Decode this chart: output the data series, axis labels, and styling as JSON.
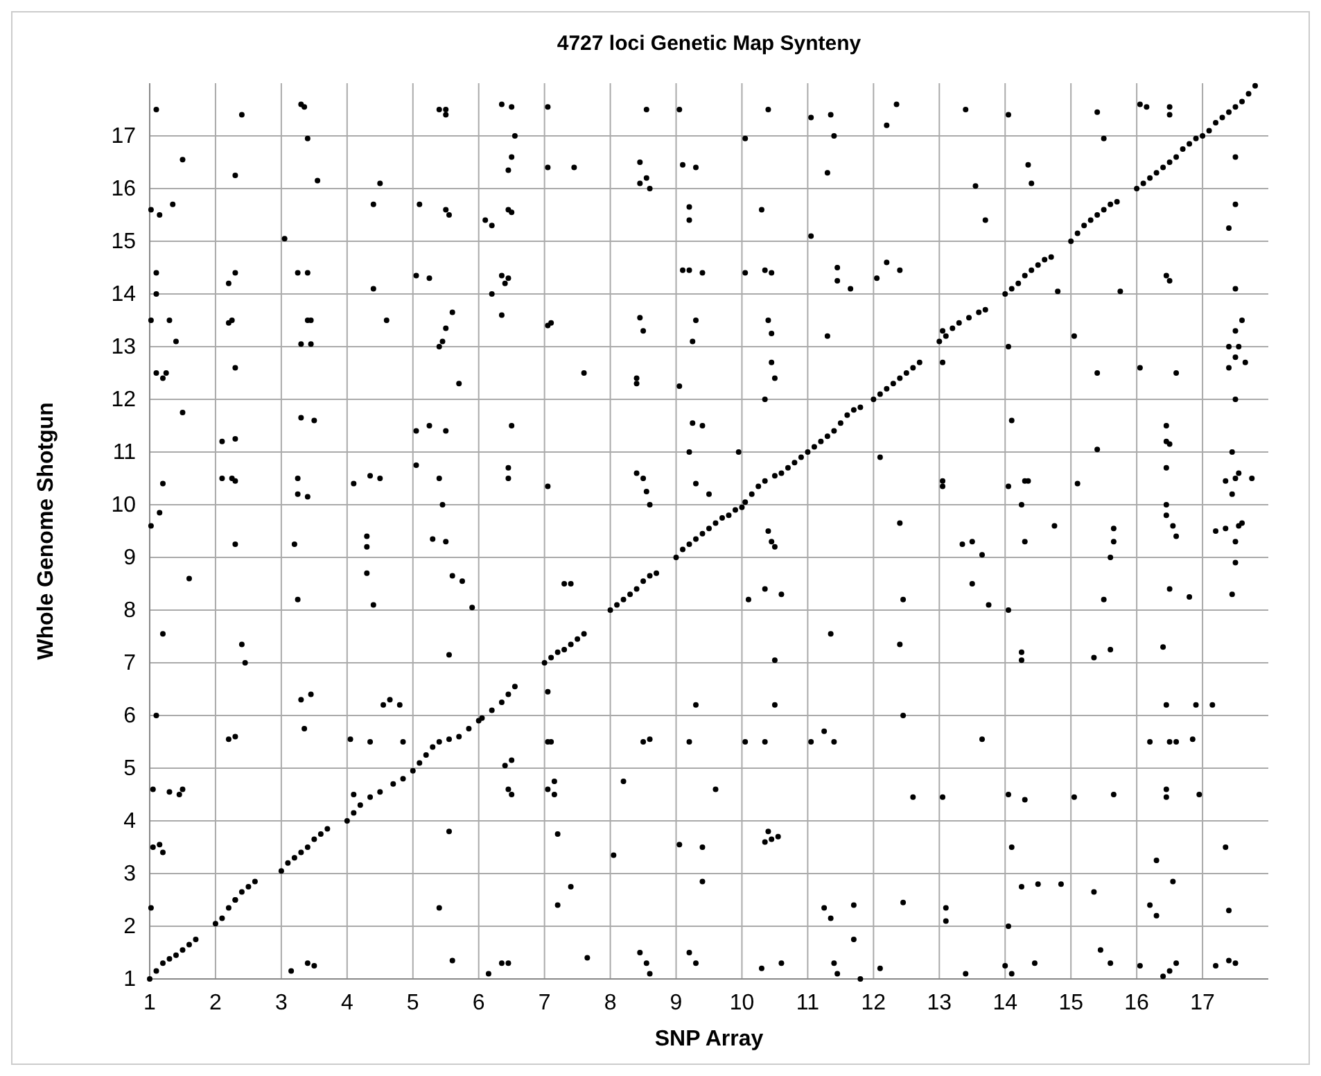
{
  "chart_data": {
    "type": "scatter",
    "title": "4727 loci Genetic Map Synteny",
    "xlabel": "SNP Array",
    "ylabel": "Whole Genome Shotgun",
    "xlim": [
      1,
      18
    ],
    "ylim": [
      1,
      18
    ],
    "xticks": [
      1,
      2,
      3,
      4,
      5,
      6,
      7,
      8,
      9,
      10,
      11,
      12,
      13,
      14,
      15,
      16,
      17
    ],
    "yticks": [
      1,
      2,
      3,
      4,
      5,
      6,
      7,
      8,
      9,
      10,
      11,
      12,
      13,
      14,
      15,
      16,
      17
    ],
    "grid": true,
    "marker": "circle",
    "series": [
      {
        "color": "#000000",
        "x": [
          1,
          1.1,
          1.2,
          1.3,
          1.4,
          1.5,
          1.6,
          1.7,
          2,
          2.1,
          2.2,
          2.3,
          2.4,
          2.5,
          2.6,
          3,
          3.1,
          3.2,
          3.3,
          3.4,
          3.5,
          3.6,
          3.7,
          4,
          4.1,
          4.2,
          4.35,
          4.5,
          4.7,
          4.85,
          5.0,
          5.1,
          5.2,
          5.3,
          5.4,
          5.55,
          5.7,
          5.85,
          6.0,
          6.05,
          6.2,
          6.35,
          6.45,
          6.55,
          7,
          7.1,
          7.2,
          7.3,
          7.4,
          7.5,
          7.6,
          8,
          8.1,
          8.2,
          8.3,
          8.4,
          8.5,
          8.6,
          8.7,
          9,
          9.1,
          9.2,
          9.3,
          9.4,
          9.5,
          9.6,
          9.7,
          9.8,
          9.9,
          10,
          10.05,
          10.15,
          10.25,
          10.35,
          10.5,
          10.6,
          10.7,
          10.8,
          10.9,
          11,
          11.1,
          11.2,
          11.3,
          11.4,
          11.5,
          11.6,
          11.7,
          11.8,
          12,
          12.1,
          12.2,
          12.3,
          12.4,
          12.5,
          12.6,
          12.7,
          13,
          13.1,
          13.2,
          13.3,
          13.45,
          13.6,
          13.7,
          14,
          14.1,
          14.2,
          14.3,
          14.4,
          14.5,
          14.6,
          14.7,
          15,
          15.1,
          15.2,
          15.3,
          15.4,
          15.5,
          15.6,
          15.7,
          16,
          16.1,
          16.2,
          16.3,
          16.4,
          16.5,
          16.6,
          16.7,
          16.8,
          16.9,
          17,
          17.1,
          17.2,
          17.3,
          17.4,
          17.5,
          17.6,
          17.7,
          17.8
        ],
        "values": [
          1,
          1.15,
          1.3,
          1.38,
          1.45,
          1.55,
          1.65,
          1.75,
          2.05,
          2.15,
          2.35,
          2.5,
          2.65,
          2.75,
          2.85,
          3.05,
          3.2,
          3.3,
          3.4,
          3.5,
          3.65,
          3.75,
          3.85,
          4.0,
          4.15,
          4.3,
          4.45,
          4.55,
          4.7,
          4.8,
          4.95,
          5.1,
          5.25,
          5.4,
          5.5,
          5.55,
          5.6,
          5.75,
          5.9,
          5.95,
          6.1,
          6.25,
          6.4,
          6.55,
          7.0,
          7.1,
          7.2,
          7.25,
          7.35,
          7.45,
          7.55,
          8.0,
          8.1,
          8.2,
          8.3,
          8.4,
          8.55,
          8.65,
          8.7,
          9.0,
          9.15,
          9.25,
          9.35,
          9.45,
          9.55,
          9.65,
          9.75,
          9.8,
          9.9,
          9.95,
          10.05,
          10.2,
          10.35,
          10.45,
          10.55,
          10.6,
          10.7,
          10.8,
          10.9,
          11.0,
          11.1,
          11.2,
          11.3,
          11.4,
          11.55,
          11.7,
          11.8,
          11.85,
          12.0,
          12.1,
          12.2,
          12.3,
          12.4,
          12.5,
          12.6,
          12.7,
          13.1,
          13.2,
          13.35,
          13.45,
          13.55,
          13.65,
          13.7,
          14.0,
          14.1,
          14.2,
          14.35,
          14.45,
          14.55,
          14.65,
          14.7,
          15.0,
          15.15,
          15.3,
          15.4,
          15.5,
          15.6,
          15.7,
          15.75,
          16.0,
          16.1,
          16.2,
          16.3,
          16.4,
          16.5,
          16.6,
          16.75,
          16.85,
          16.95,
          17.0,
          17.1,
          17.25,
          17.35,
          17.45,
          17.55,
          17.65,
          17.8,
          17.95
        ]
      },
      {
        "color": "#000000",
        "x": [
          1.1,
          1.02,
          1.15,
          1.1,
          1.1,
          1.35,
          1.5,
          1.3,
          1.4,
          1.02,
          1.1,
          1.25,
          1.2,
          1.5,
          1.2,
          1.15,
          1.02,
          1.6,
          1.2,
          1.1,
          1.05,
          1.3,
          1.45,
          1.5,
          1.05,
          1.15,
          1.2,
          1.02
        ],
        "values": [
          17.5,
          15.6,
          15.5,
          14.4,
          14.0,
          15.7,
          16.55,
          13.5,
          13.1,
          13.5,
          12.5,
          12.5,
          12.4,
          11.75,
          10.4,
          9.85,
          9.6,
          8.6,
          7.55,
          6.0,
          4.6,
          4.55,
          4.5,
          4.6,
          3.5,
          3.55,
          3.4,
          2.35
        ]
      },
      {
        "color": "#000000",
        "x": [
          2.2,
          2.3,
          2.25,
          2.2,
          2.3,
          2.3,
          2.4,
          2.1,
          2.3,
          2.1,
          2.25,
          2.3,
          2.3,
          2.2,
          2.3,
          2.4,
          2.45,
          2.3
        ],
        "values": [
          14.2,
          14.4,
          13.5,
          13.45,
          12.6,
          16.25,
          17.4,
          11.2,
          11.25,
          10.5,
          10.5,
          10.45,
          9.25,
          5.55,
          5.6,
          7.35,
          7.0,
          2.5
        ]
      },
      {
        "color": "#000000",
        "x": [
          3.3,
          3.35,
          3.4,
          3.55,
          3.05,
          3.25,
          3.4,
          3.3,
          3.4,
          3.45,
          3.45,
          3.3,
          3.5,
          3.25,
          3.25,
          3.4,
          3.2,
          3.25,
          3.3,
          3.45,
          3.35,
          3.15,
          3.4,
          3.5
        ],
        "values": [
          17.6,
          17.55,
          16.95,
          16.15,
          15.05,
          14.4,
          14.4,
          13.05,
          13.5,
          13.5,
          13.05,
          11.65,
          11.6,
          10.5,
          10.2,
          10.15,
          9.25,
          8.2,
          6.3,
          6.4,
          5.75,
          1.15,
          1.3,
          1.25
        ]
      },
      {
        "color": "#000000",
        "x": [
          4.5,
          4.4,
          4.4,
          4.6,
          4.1,
          4.35,
          4.5,
          4.3,
          4.3,
          4.3,
          4.4,
          4.05,
          4.35,
          4.1,
          4.55,
          4.65,
          4.8,
          4.85
        ],
        "values": [
          16.1,
          15.7,
          14.1,
          13.5,
          10.4,
          10.55,
          10.5,
          9.4,
          9.2,
          8.7,
          8.1,
          5.55,
          5.5,
          4.5,
          6.2,
          6.3,
          6.2,
          5.5
        ]
      },
      {
        "color": "#000000",
        "x": [
          5.4,
          5.5,
          5.5,
          5.5,
          5.55,
          5.1,
          5.05,
          5.25,
          5.5,
          5.45,
          5.4,
          5.6,
          5.7,
          5.05,
          5.25,
          5.5,
          5.05,
          5.4,
          5.45,
          5.5,
          5.3,
          5.6,
          5.75,
          5.55,
          5.55,
          5.4,
          5.6,
          5.9
        ],
        "values": [
          17.5,
          17.5,
          17.4,
          15.6,
          15.5,
          15.7,
          14.35,
          14.3,
          13.35,
          13.1,
          13.0,
          13.65,
          12.3,
          11.4,
          11.5,
          11.4,
          10.75,
          10.5,
          10.0,
          9.3,
          9.35,
          8.65,
          8.55,
          7.15,
          3.8,
          2.35,
          1.35,
          8.05
        ]
      },
      {
        "color": "#000000",
        "x": [
          6.35,
          6.5,
          6.55,
          6.5,
          6.45,
          6.1,
          6.2,
          6.45,
          6.5,
          6.35,
          6.4,
          6.45,
          6.35,
          6.5,
          6.45,
          6.45,
          6.2,
          6.4,
          6.5,
          6.45,
          6.5,
          6.35,
          6.45,
          6.15
        ],
        "values": [
          17.6,
          17.55,
          17.0,
          16.6,
          16.35,
          15.4,
          15.3,
          15.6,
          15.55,
          14.35,
          14.2,
          14.3,
          13.6,
          11.5,
          10.7,
          10.5,
          14.0,
          5.05,
          5.15,
          4.6,
          4.5,
          1.3,
          1.3,
          1.1
        ]
      },
      {
        "color": "#000000",
        "x": [
          7.05,
          7.05,
          7.45,
          7.1,
          7.05,
          7.6,
          7.05,
          7.3,
          7.4,
          7.05,
          7.05,
          7.1,
          7.05,
          7.15,
          7.15,
          7.2,
          7.4,
          7.2,
          7.65
        ],
        "values": [
          17.55,
          16.4,
          16.4,
          13.45,
          13.4,
          12.5,
          10.35,
          8.5,
          8.5,
          6.45,
          5.5,
          5.5,
          4.6,
          4.75,
          4.5,
          3.75,
          2.75,
          2.4,
          1.4
        ]
      },
      {
        "color": "#000000",
        "x": [
          8.55,
          8.45,
          8.45,
          8.55,
          8.6,
          8.45,
          8.5,
          8.4,
          8.4,
          8.4,
          8.5,
          8.55,
          8.6,
          8.2,
          8.5,
          8.6,
          8.05,
          8.45,
          8.55,
          8.6
        ],
        "values": [
          17.5,
          16.5,
          16.1,
          16.2,
          16.0,
          13.55,
          13.3,
          12.4,
          12.3,
          10.6,
          10.5,
          10.25,
          10.0,
          4.75,
          5.5,
          5.55,
          3.35,
          1.5,
          1.3,
          1.1
        ]
      },
      {
        "color": "#000000",
        "x": [
          9.05,
          9.1,
          9.3,
          9.2,
          9.2,
          9.1,
          9.2,
          9.4,
          9.3,
          9.25,
          9.05,
          9.25,
          9.4,
          9.2,
          9.3,
          9.5,
          9.3,
          9.2,
          9.6,
          9.05,
          9.4,
          9.4,
          9.2,
          9.3
        ],
        "values": [
          17.5,
          16.45,
          16.4,
          15.65,
          15.4,
          14.45,
          14.45,
          14.4,
          13.5,
          13.1,
          12.25,
          11.55,
          11.5,
          11.0,
          10.4,
          10.2,
          6.2,
          5.5,
          4.6,
          3.55,
          3.5,
          2.85,
          1.5,
          1.3
        ]
      },
      {
        "color": "#000000",
        "x": [
          10.4,
          10.05,
          10.3,
          10.35,
          10.05,
          10.45,
          10.4,
          10.45,
          10.45,
          10.5,
          10.35,
          9.95,
          10.4,
          10.45,
          10.5,
          10.1,
          10.35,
          10.6,
          10.05,
          10.35,
          10.5,
          10.4,
          10.35,
          10.45,
          10.55,
          10.3,
          10.6,
          10.5
        ],
        "values": [
          17.5,
          16.95,
          15.6,
          14.45,
          14.4,
          14.4,
          13.5,
          13.25,
          12.7,
          12.4,
          12.0,
          11.0,
          9.5,
          9.3,
          9.2,
          8.2,
          8.4,
          8.3,
          5.5,
          5.5,
          6.2,
          3.8,
          3.6,
          3.65,
          3.7,
          1.2,
          1.3,
          7.05
        ]
      },
      {
        "color": "#000000",
        "x": [
          11.05,
          11.35,
          11.4,
          11.05,
          11.3,
          11.45,
          11.45,
          11.65,
          11.3,
          11.35,
          11.25,
          11.4,
          11.25,
          11.35,
          11.4,
          11.45,
          11.7,
          11.7,
          11.05,
          11.8
        ],
        "values": [
          17.35,
          17.4,
          17.0,
          15.1,
          16.3,
          14.5,
          14.25,
          14.1,
          13.2,
          7.55,
          5.7,
          5.5,
          2.35,
          2.15,
          1.3,
          1.1,
          2.4,
          1.75,
          5.5,
          1.0
        ]
      },
      {
        "color": "#000000",
        "x": [
          12.35,
          12.2,
          12.05,
          12.2,
          12.4,
          12.1,
          12.4,
          12.45,
          12.4,
          12.45,
          12.6,
          12.45,
          12.1
        ],
        "values": [
          17.6,
          17.2,
          14.3,
          14.6,
          14.45,
          10.9,
          9.65,
          8.2,
          7.35,
          6.0,
          4.45,
          2.45,
          1.2
        ]
      },
      {
        "color": "#000000",
        "x": [
          13.4,
          13.55,
          13.7,
          13.05,
          13.05,
          13.05,
          13.05,
          13.35,
          13.5,
          13.65,
          13.5,
          13.75,
          13.65,
          13.05,
          13.1,
          13.1,
          13.4
        ],
        "values": [
          17.5,
          16.05,
          15.4,
          13.3,
          12.7,
          10.45,
          10.35,
          9.25,
          9.3,
          9.05,
          8.5,
          8.1,
          5.55,
          4.45,
          2.35,
          2.1,
          1.1
        ]
      },
      {
        "color": "#000000",
        "x": [
          14.05,
          14.35,
          14.4,
          14.05,
          14.1,
          14.05,
          14.3,
          14.35,
          14.25,
          14.3,
          14.75,
          14.05,
          14.25,
          14.25,
          14.05,
          14.3,
          14.1,
          14.25,
          14.05,
          14.0,
          14.1,
          14.45,
          14.5,
          14.85,
          14.8
        ],
        "values": [
          17.4,
          16.45,
          16.1,
          13.0,
          11.6,
          10.35,
          10.45,
          10.45,
          10.0,
          9.3,
          9.6,
          8.0,
          7.2,
          7.05,
          4.5,
          4.4,
          3.5,
          2.75,
          2.0,
          1.25,
          1.1,
          1.3,
          2.8,
          2.8,
          14.05
        ]
      },
      {
        "color": "#000000",
        "x": [
          15.4,
          15.5,
          15.05,
          15.4,
          15.4,
          15.1,
          15.65,
          15.65,
          15.6,
          15.5,
          15.6,
          15.35,
          15.65,
          15.35,
          15.45,
          15.6,
          15.05,
          15.75
        ],
        "values": [
          17.45,
          16.95,
          13.2,
          12.5,
          11.05,
          10.4,
          9.55,
          9.3,
          9.0,
          8.2,
          7.25,
          7.1,
          4.5,
          2.65,
          1.55,
          1.3,
          4.45,
          14.05
        ]
      },
      {
        "color": "#000000",
        "x": [
          16.05,
          16.15,
          16.5,
          16.5,
          16.45,
          16.5,
          16.05,
          16.6,
          16.45,
          16.45,
          16.5,
          16.45,
          16.45,
          16.45,
          16.55,
          16.6,
          16.8,
          16.5,
          16.4,
          16.45,
          16.5,
          16.6,
          16.2,
          16.85,
          16.45,
          16.45,
          16.3,
          16.2,
          16.3,
          16.55,
          16.6,
          16.5,
          16.4,
          16.9,
          16.95,
          16.05
        ],
        "values": [
          17.6,
          17.55,
          17.55,
          17.4,
          14.35,
          14.25,
          12.6,
          12.5,
          11.5,
          11.2,
          11.15,
          10.7,
          10.0,
          9.8,
          9.6,
          9.4,
          8.25,
          8.4,
          7.3,
          6.2,
          5.5,
          5.5,
          5.5,
          5.55,
          4.6,
          4.45,
          3.25,
          2.4,
          2.2,
          2.85,
          1.3,
          1.15,
          1.05,
          6.2,
          4.5,
          1.25
        ]
      },
      {
        "color": "#000000",
        "x": [
          17.5,
          17.5,
          17.4,
          17.5,
          17.6,
          17.4,
          17.5,
          17.55,
          17.5,
          17.4,
          17.65,
          17.5,
          17.45,
          17.55,
          17.5,
          17.45,
          17.35,
          17.75,
          17.55,
          17.6,
          17.5,
          17.5,
          17.2,
          17.35,
          17.45,
          17.15,
          17.35,
          17.4,
          17.4,
          17.2,
          17.5
        ],
        "values": [
          16.6,
          15.7,
          15.25,
          14.1,
          13.5,
          13.0,
          13.3,
          13.0,
          12.8,
          12.6,
          12.7,
          12.0,
          11.0,
          10.6,
          10.5,
          10.2,
          10.45,
          10.5,
          9.6,
          9.65,
          9.3,
          8.9,
          9.5,
          9.55,
          8.3,
          6.2,
          3.5,
          2.3,
          1.35,
          1.25,
          1.3
        ]
      }
    ]
  }
}
